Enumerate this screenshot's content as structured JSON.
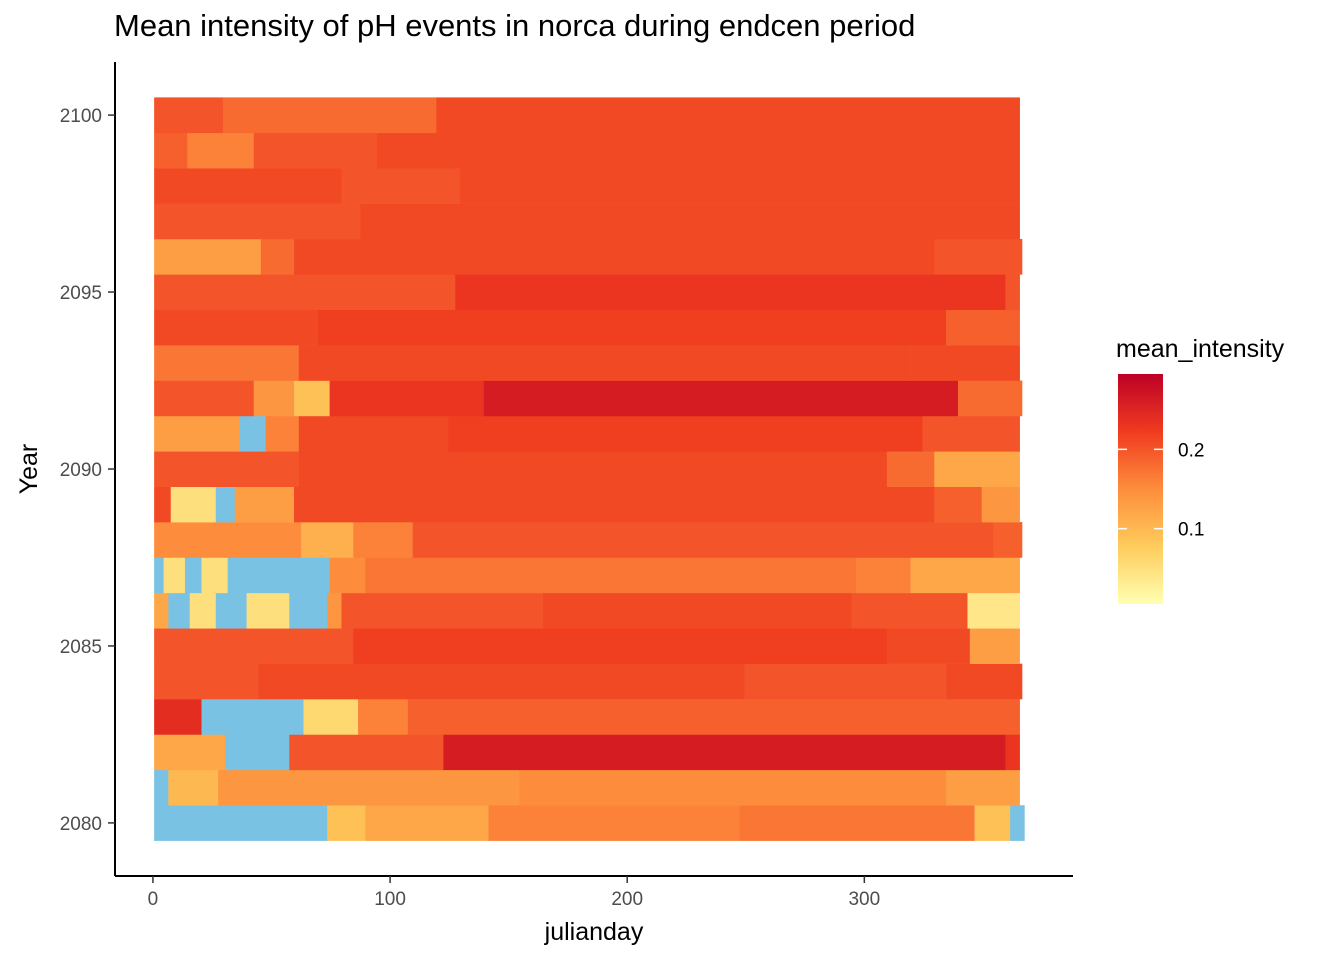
{
  "chart_data": {
    "type": "heatmap",
    "title": "Mean intensity of pH events in norca during endcen period",
    "xlabel": "julianday",
    "ylabel": "Year",
    "xlim": [
      -16,
      388
    ],
    "ylim": [
      2078.5,
      2101.5
    ],
    "x_ticks": [
      0,
      100,
      200,
      300
    ],
    "y_ticks": [
      2080,
      2085,
      2090,
      2095,
      2100
    ],
    "grid": false,
    "legend": {
      "title": "mean_intensity",
      "position": "right",
      "ticks": [
        0.1,
        0.2
      ],
      "range": [
        0.005,
        0.295
      ],
      "colors": [
        "#ffffb2",
        "#fecc5c",
        "#fd8d3c",
        "#f03b20",
        "#bd0026"
      ]
    },
    "na_color": "#7ac2e3",
    "rows": [
      {
        "year": 2080,
        "end": 368,
        "segments": [
          [
            1,
            null
          ],
          [
            74,
            0.09
          ],
          [
            90,
            0.12
          ],
          [
            142,
            0.16
          ],
          [
            248,
            0.17
          ],
          [
            347,
            0.09
          ],
          [
            362,
            null
          ]
        ]
      },
      {
        "year": 2081,
        "end": 366,
        "segments": [
          [
            1,
            null
          ],
          [
            7,
            0.1
          ],
          [
            28,
            0.14
          ],
          [
            155,
            0.15
          ],
          [
            335,
            0.13
          ]
        ]
      },
      {
        "year": 2082,
        "end": 366,
        "segments": [
          [
            1,
            0.12
          ],
          [
            31,
            null
          ],
          [
            58,
            0.2
          ],
          [
            123,
            0.26
          ],
          [
            360,
            0.23
          ]
        ]
      },
      {
        "year": 2083,
        "end": 366,
        "segments": [
          [
            1,
            0.24
          ],
          [
            21,
            null
          ],
          [
            64,
            0.06
          ],
          [
            87,
            0.16
          ],
          [
            108,
            0.19
          ]
        ]
      },
      {
        "year": 2084,
        "end": 367,
        "segments": [
          [
            1,
            0.2
          ],
          [
            45,
            0.21
          ],
          [
            250,
            0.2
          ],
          [
            335,
            0.21
          ]
        ]
      },
      {
        "year": 2085,
        "end": 366,
        "segments": [
          [
            1,
            0.2
          ],
          [
            85,
            0.22
          ],
          [
            310,
            0.21
          ],
          [
            345,
            0.13
          ]
        ]
      },
      {
        "year": 2086,
        "end": 366,
        "segments": [
          [
            1,
            0.12
          ],
          [
            7,
            null
          ],
          [
            16,
            0.05
          ],
          [
            27,
            null
          ],
          [
            40,
            0.05
          ],
          [
            58,
            null
          ],
          [
            74,
            0.14
          ],
          [
            80,
            0.2
          ],
          [
            165,
            0.21
          ],
          [
            295,
            0.2
          ],
          [
            344,
            0.04
          ]
        ]
      },
      {
        "year": 2087,
        "end": 366,
        "segments": [
          [
            1,
            null
          ],
          [
            5,
            0.05
          ],
          [
            14,
            null
          ],
          [
            21,
            0.05
          ],
          [
            32,
            null
          ],
          [
            75,
            0.15
          ],
          [
            90,
            0.17
          ],
          [
            297,
            0.16
          ],
          [
            320,
            0.12
          ]
        ]
      },
      {
        "year": 2088,
        "end": 367,
        "segments": [
          [
            1,
            0.15
          ],
          [
            63,
            0.11
          ],
          [
            85,
            0.16
          ],
          [
            110,
            0.2
          ],
          [
            355,
            0.19
          ]
        ]
      },
      {
        "year": 2089,
        "end": 366,
        "segments": [
          [
            1,
            0.21
          ],
          [
            8,
            0.05
          ],
          [
            27,
            null
          ],
          [
            35,
            0.13
          ],
          [
            60,
            0.21
          ],
          [
            330,
            0.19
          ],
          [
            350,
            0.14
          ]
        ]
      },
      {
        "year": 2090,
        "end": 366,
        "segments": [
          [
            1,
            0.2
          ],
          [
            62,
            0.21
          ],
          [
            310,
            0.18
          ],
          [
            330,
            0.12
          ]
        ]
      },
      {
        "year": 2091,
        "end": 366,
        "segments": [
          [
            1,
            0.13
          ],
          [
            37,
            null
          ],
          [
            48,
            0.16
          ],
          [
            62,
            0.21
          ],
          [
            125,
            0.22
          ],
          [
            325,
            0.2
          ]
        ]
      },
      {
        "year": 2092,
        "end": 367,
        "segments": [
          [
            1,
            0.2
          ],
          [
            43,
            0.14
          ],
          [
            60,
            0.09
          ],
          [
            75,
            0.23
          ],
          [
            140,
            0.26
          ],
          [
            340,
            0.18
          ]
        ]
      },
      {
        "year": 2093,
        "end": 366,
        "segments": [
          [
            1,
            0.17
          ],
          [
            62,
            0.21
          ],
          [
            320,
            0.21
          ]
        ]
      },
      {
        "year": 2094,
        "end": 366,
        "segments": [
          [
            1,
            0.21
          ],
          [
            70,
            0.22
          ],
          [
            335,
            0.19
          ]
        ]
      },
      {
        "year": 2095,
        "end": 366,
        "segments": [
          [
            1,
            0.2
          ],
          [
            128,
            0.23
          ],
          [
            360,
            0.2
          ]
        ]
      },
      {
        "year": 2096,
        "end": 367,
        "segments": [
          [
            1,
            0.13
          ],
          [
            46,
            0.18
          ],
          [
            60,
            0.21
          ],
          [
            330,
            0.2
          ]
        ]
      },
      {
        "year": 2097,
        "end": 366,
        "segments": [
          [
            1,
            0.2
          ],
          [
            88,
            0.21
          ]
        ]
      },
      {
        "year": 2098,
        "end": 366,
        "segments": [
          [
            1,
            0.21
          ],
          [
            80,
            0.2
          ],
          [
            130,
            0.21
          ]
        ]
      },
      {
        "year": 2099,
        "end": 366,
        "segments": [
          [
            1,
            0.19
          ],
          [
            15,
            0.16
          ],
          [
            43,
            0.2
          ],
          [
            95,
            0.21
          ]
        ]
      },
      {
        "year": 2100,
        "end": 366,
        "segments": [
          [
            1,
            0.2
          ],
          [
            30,
            0.18
          ],
          [
            120,
            0.21
          ]
        ]
      }
    ]
  }
}
